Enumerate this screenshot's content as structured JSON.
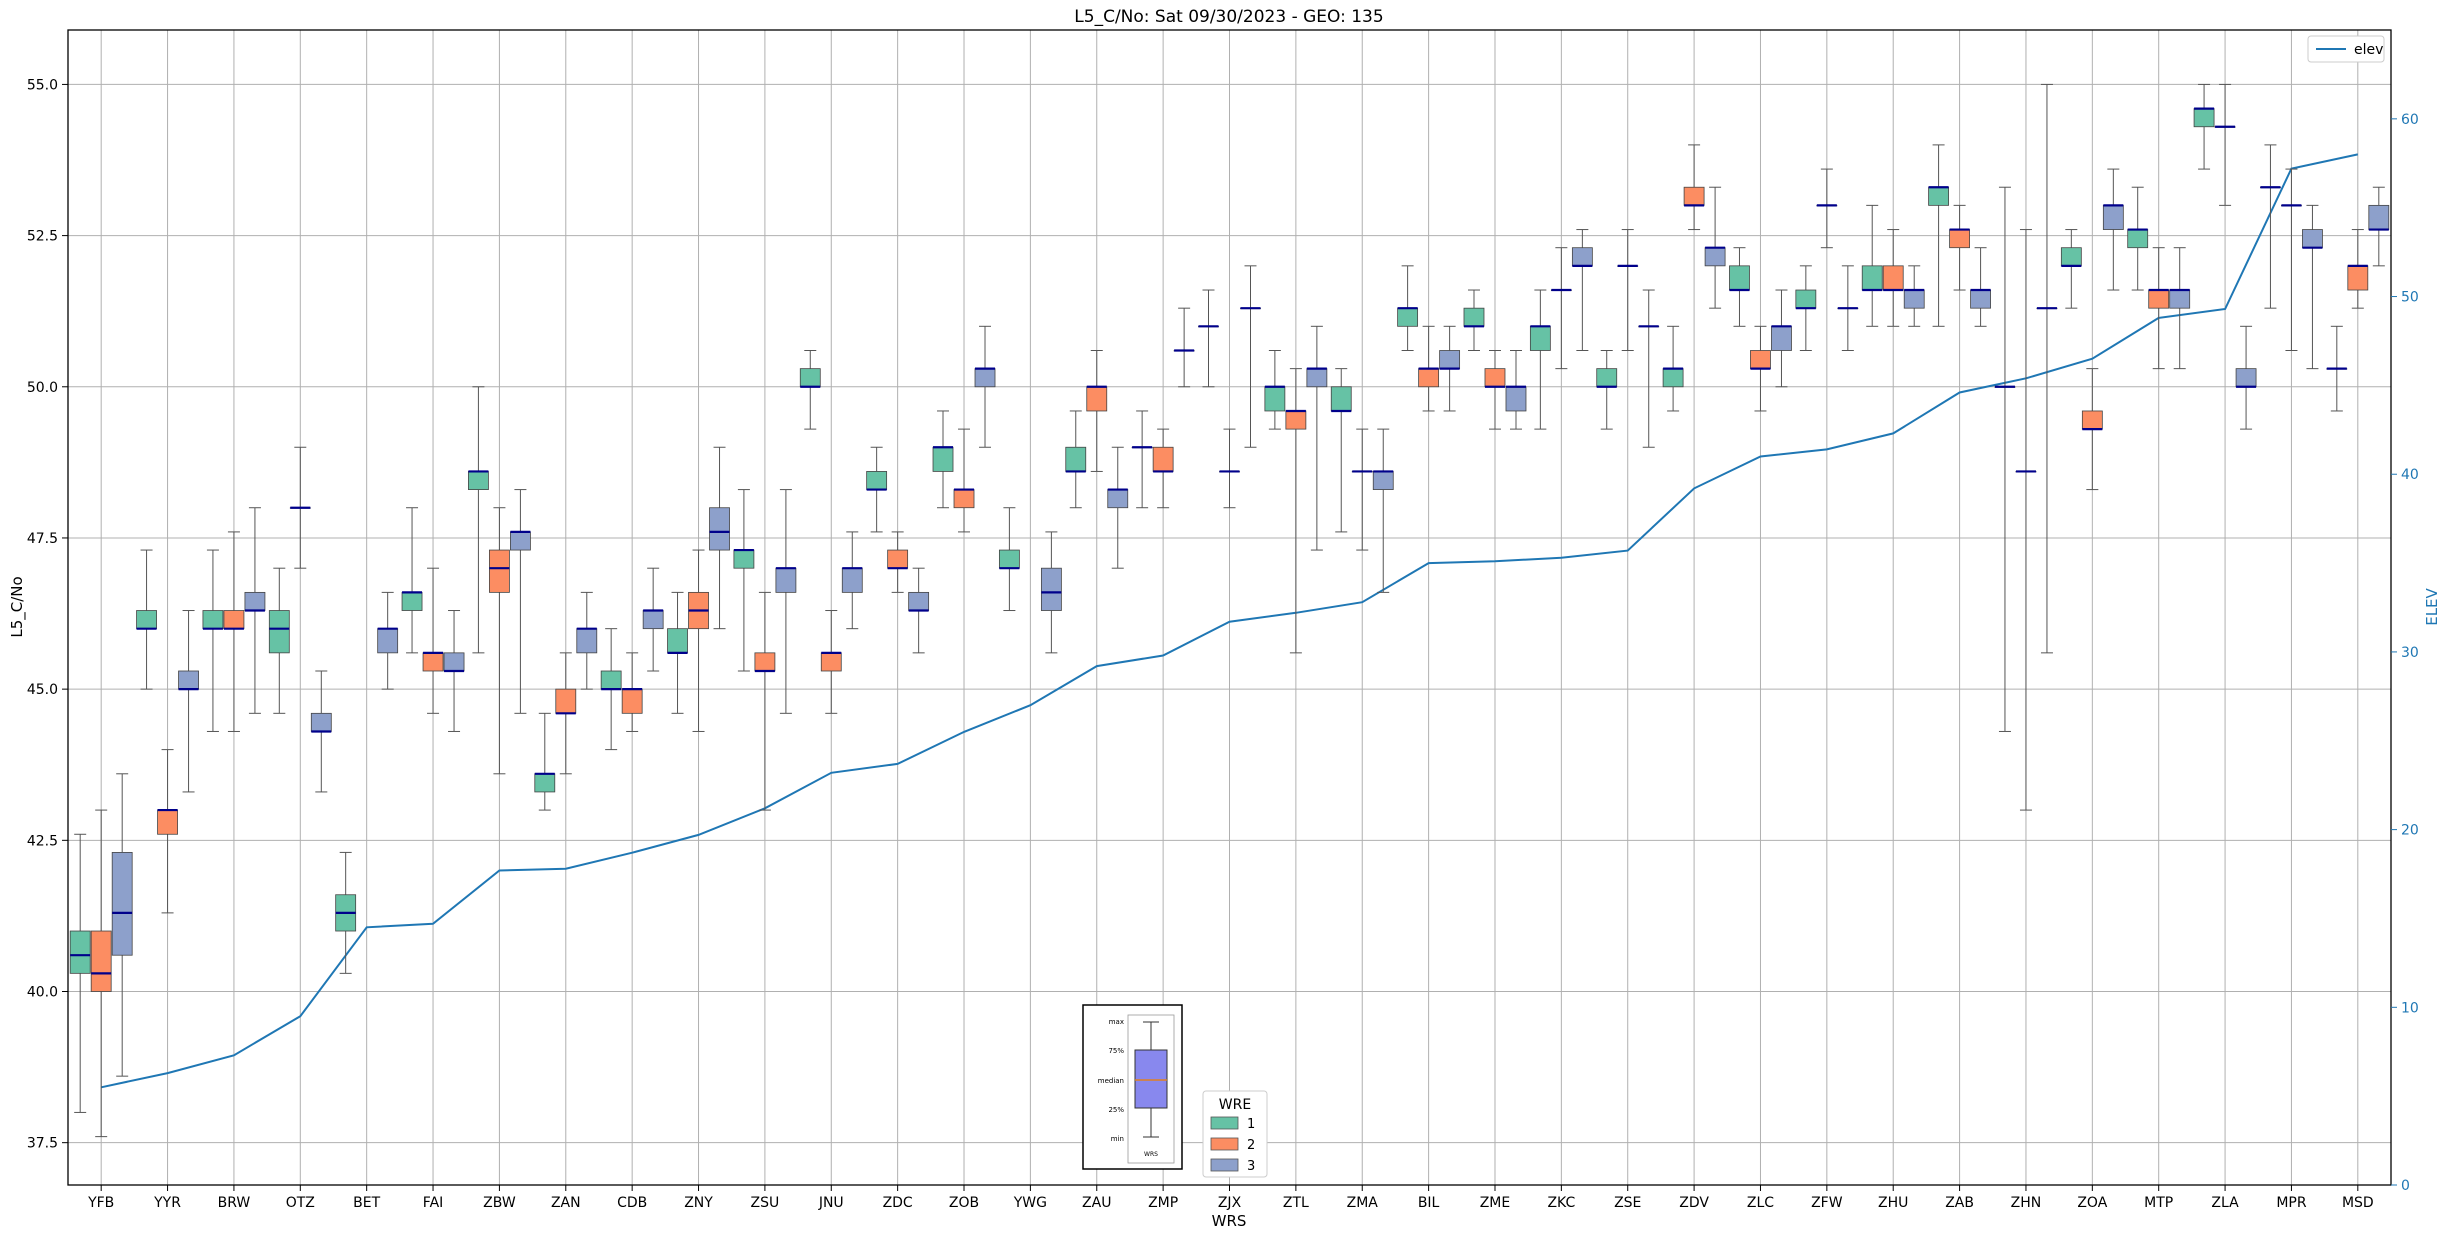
{
  "chart_data": {
    "type": "box",
    "title": "L5_C/No: Sat 09/30/2023 - GEO: 135",
    "xlabel": "WRS",
    "ylabel": "L5_C/No",
    "y2label": "ELEV",
    "ylim": [
      36.8,
      55.9
    ],
    "y2lim": [
      0,
      65
    ],
    "yticks": [
      "37.5",
      "40.0",
      "42.5",
      "45.0",
      "47.5",
      "50.0",
      "52.5",
      "55.0"
    ],
    "y2ticks": [
      "0",
      "10",
      "20",
      "30",
      "40",
      "50",
      "60"
    ],
    "grid": true,
    "categories": [
      "YFB",
      "YYR",
      "BRW",
      "OTZ",
      "BET",
      "FAI",
      "ZBW",
      "ZAN",
      "CDB",
      "ZNY",
      "ZSU",
      "JNU",
      "ZDC",
      "ZOB",
      "YWG",
      "ZAU",
      "ZMP",
      "ZJX",
      "ZTL",
      "ZMA",
      "BIL",
      "ZME",
      "ZKC",
      "ZSE",
      "ZDV",
      "ZLC",
      "ZFW",
      "ZHU",
      "ZAB",
      "ZHN",
      "ZOA",
      "MTP",
      "ZLA",
      "MPR",
      "MSD"
    ],
    "wre_colors": {
      "1": "#66c2a5",
      "2": "#fc8d62",
      "3": "#8da0cb"
    },
    "median_color": "#00008b",
    "elev_color": "#1f77b4",
    "legend_elev": {
      "label": "elev",
      "position": "top-right"
    },
    "legend_wre": {
      "title": "WRE",
      "entries": [
        "1",
        "2",
        "3"
      ],
      "position": "bottom-center"
    },
    "explainer": {
      "labels": [
        "max",
        "75%",
        "median",
        "25%",
        "min"
      ],
      "xlabel": "WRS",
      "box_color": "#8888ee",
      "median_color": "#e08020"
    },
    "elev": [
      5.5,
      6.3,
      7.3,
      9.5,
      14.5,
      14.7,
      17.7,
      17.8,
      18.7,
      19.7,
      21.2,
      23.2,
      23.7,
      25.5,
      27.0,
      29.2,
      29.8,
      31.7,
      32.2,
      32.8,
      35.0,
      35.1,
      35.3,
      35.7,
      39.2,
      41.0,
      41.4,
      42.3,
      44.6,
      45.4,
      46.5,
      48.8,
      49.3,
      57.2,
      58.0
    ],
    "boxes": [
      {
        "station": "YFB",
        "wre": 1,
        "min": 38.0,
        "q1": 40.3,
        "median": 40.6,
        "q3": 41.0,
        "max": 42.6
      },
      {
        "station": "YFB",
        "wre": 2,
        "min": 37.6,
        "q1": 40.0,
        "median": 40.3,
        "q3": 41.0,
        "max": 43.0
      },
      {
        "station": "YFB",
        "wre": 3,
        "min": 38.6,
        "q1": 40.6,
        "median": 41.3,
        "q3": 42.3,
        "max": 43.6
      },
      {
        "station": "YYR",
        "wre": 1,
        "min": 45.0,
        "q1": 46.0,
        "median": 46.0,
        "q3": 46.3,
        "max": 47.3
      },
      {
        "station": "YYR",
        "wre": 2,
        "min": 41.3,
        "q1": 42.6,
        "median": 43.0,
        "q3": 43.0,
        "max": 44.0
      },
      {
        "station": "YYR",
        "wre": 3,
        "min": 43.3,
        "q1": 45.0,
        "median": 45.0,
        "q3": 45.3,
        "max": 46.3
      },
      {
        "station": "BRW",
        "wre": 1,
        "min": 44.3,
        "q1": 46.0,
        "median": 46.0,
        "q3": 46.3,
        "max": 47.3
      },
      {
        "station": "BRW",
        "wre": 2,
        "min": 44.3,
        "q1": 46.0,
        "median": 46.0,
        "q3": 46.3,
        "max": 47.6
      },
      {
        "station": "BRW",
        "wre": 3,
        "min": 44.6,
        "q1": 46.3,
        "median": 46.3,
        "q3": 46.6,
        "max": 48.0
      },
      {
        "station": "OTZ",
        "wre": 1,
        "min": 44.6,
        "q1": 45.6,
        "median": 46.0,
        "q3": 46.3,
        "max": 47.0
      },
      {
        "station": "OTZ",
        "wre": 2,
        "min": 47.0,
        "q1": 48.0,
        "median": 48.0,
        "q3": 48.0,
        "max": 49.0
      },
      {
        "station": "OTZ",
        "wre": 3,
        "min": 43.3,
        "q1": 44.3,
        "median": 44.3,
        "q3": 44.6,
        "max": 45.3
      },
      {
        "station": "BET",
        "wre": 1,
        "min": 40.3,
        "q1": 41.0,
        "median": 41.3,
        "q3": 41.6,
        "max": 42.3
      },
      {
        "station": "BET",
        "wre": 3,
        "min": 45.0,
        "q1": 45.6,
        "median": 46.0,
        "q3": 46.0,
        "max": 46.6
      },
      {
        "station": "FAI",
        "wre": 1,
        "min": 45.6,
        "q1": 46.3,
        "median": 46.6,
        "q3": 46.6,
        "max": 48.0
      },
      {
        "station": "FAI",
        "wre": 2,
        "min": 44.6,
        "q1": 45.3,
        "median": 45.6,
        "q3": 45.6,
        "max": 47.0
      },
      {
        "station": "FAI",
        "wre": 3,
        "min": 44.3,
        "q1": 45.3,
        "median": 45.3,
        "q3": 45.6,
        "max": 46.3
      },
      {
        "station": "ZBW",
        "wre": 1,
        "min": 45.6,
        "q1": 48.3,
        "median": 48.6,
        "q3": 48.6,
        "max": 50.0
      },
      {
        "station": "ZBW",
        "wre": 2,
        "min": 43.6,
        "q1": 46.6,
        "median": 47.0,
        "q3": 47.3,
        "max": 48.0
      },
      {
        "station": "ZBW",
        "wre": 3,
        "min": 44.6,
        "q1": 47.3,
        "median": 47.6,
        "q3": 47.6,
        "max": 48.3
      },
      {
        "station": "ZAN",
        "wre": 1,
        "min": 43.0,
        "q1": 43.3,
        "median": 43.6,
        "q3": 43.6,
        "max": 44.6
      },
      {
        "station": "ZAN",
        "wre": 2,
        "min": 43.6,
        "q1": 44.6,
        "median": 44.6,
        "q3": 45.0,
        "max": 45.6
      },
      {
        "station": "ZAN",
        "wre": 3,
        "min": 45.0,
        "q1": 45.6,
        "median": 46.0,
        "q3": 46.0,
        "max": 46.6
      },
      {
        "station": "CDB",
        "wre": 1,
        "min": 44.0,
        "q1": 45.0,
        "median": 45.0,
        "q3": 45.3,
        "max": 46.0
      },
      {
        "station": "CDB",
        "wre": 2,
        "min": 44.3,
        "q1": 44.6,
        "median": 45.0,
        "q3": 45.0,
        "max": 45.6
      },
      {
        "station": "CDB",
        "wre": 3,
        "min": 45.3,
        "q1": 46.0,
        "median": 46.3,
        "q3": 46.3,
        "max": 47.0
      },
      {
        "station": "ZNY",
        "wre": 1,
        "min": 44.6,
        "q1": 45.6,
        "median": 45.6,
        "q3": 46.0,
        "max": 46.6
      },
      {
        "station": "ZNY",
        "wre": 2,
        "min": 44.3,
        "q1": 46.0,
        "median": 46.3,
        "q3": 46.6,
        "max": 47.3
      },
      {
        "station": "ZNY",
        "wre": 3,
        "min": 46.0,
        "q1": 47.3,
        "median": 47.6,
        "q3": 48.0,
        "max": 49.0
      },
      {
        "station": "ZSU",
        "wre": 1,
        "min": 45.3,
        "q1": 47.0,
        "median": 47.3,
        "q3": 47.3,
        "max": 48.3
      },
      {
        "station": "ZSU",
        "wre": 2,
        "min": 43.0,
        "q1": 45.3,
        "median": 45.3,
        "q3": 45.6,
        "max": 46.6
      },
      {
        "station": "ZSU",
        "wre": 3,
        "min": 44.6,
        "q1": 46.6,
        "median": 47.0,
        "q3": 47.0,
        "max": 48.3
      },
      {
        "station": "JNU",
        "wre": 1,
        "min": 49.3,
        "q1": 50.0,
        "median": 50.0,
        "q3": 50.3,
        "max": 50.6
      },
      {
        "station": "JNU",
        "wre": 2,
        "min": 44.6,
        "q1": 45.3,
        "median": 45.6,
        "q3": 45.6,
        "max": 46.3
      },
      {
        "station": "JNU",
        "wre": 3,
        "min": 46.0,
        "q1": 46.6,
        "median": 47.0,
        "q3": 47.0,
        "max": 47.6
      },
      {
        "station": "ZDC",
        "wre": 1,
        "min": 47.6,
        "q1": 48.3,
        "median": 48.3,
        "q3": 48.6,
        "max": 49.0
      },
      {
        "station": "ZDC",
        "wre": 2,
        "min": 46.6,
        "q1": 47.0,
        "median": 47.0,
        "q3": 47.3,
        "max": 47.6
      },
      {
        "station": "ZDC",
        "wre": 3,
        "min": 45.6,
        "q1": 46.3,
        "median": 46.3,
        "q3": 46.6,
        "max": 47.0
      },
      {
        "station": "ZOB",
        "wre": 1,
        "min": 48.0,
        "q1": 48.6,
        "median": 49.0,
        "q3": 49.0,
        "max": 49.6
      },
      {
        "station": "ZOB",
        "wre": 2,
        "min": 47.6,
        "q1": 48.0,
        "median": 48.3,
        "q3": 48.3,
        "max": 49.3
      },
      {
        "station": "ZOB",
        "wre": 3,
        "min": 49.0,
        "q1": 50.0,
        "median": 50.3,
        "q3": 50.3,
        "max": 51.0
      },
      {
        "station": "YWG",
        "wre": 1,
        "min": 46.3,
        "q1": 47.0,
        "median": 47.0,
        "q3": 47.3,
        "max": 48.0
      },
      {
        "station": "YWG",
        "wre": 3,
        "min": 45.6,
        "q1": 46.3,
        "median": 46.6,
        "q3": 47.0,
        "max": 47.6
      },
      {
        "station": "ZAU",
        "wre": 1,
        "min": 48.0,
        "q1": 48.6,
        "median": 48.6,
        "q3": 49.0,
        "max": 49.6
      },
      {
        "station": "ZAU",
        "wre": 2,
        "min": 48.6,
        "q1": 49.6,
        "median": 50.0,
        "q3": 50.0,
        "max": 50.6
      },
      {
        "station": "ZAU",
        "wre": 3,
        "min": 47.0,
        "q1": 48.0,
        "median": 48.3,
        "q3": 48.3,
        "max": 49.0
      },
      {
        "station": "ZMP",
        "wre": 1,
        "min": 48.0,
        "q1": 49.0,
        "median": 49.0,
        "q3": 49.0,
        "max": 49.6
      },
      {
        "station": "ZMP",
        "wre": 2,
        "min": 48.0,
        "q1": 48.6,
        "median": 48.6,
        "q3": 49.0,
        "max": 49.3
      },
      {
        "station": "ZMP",
        "wre": 3,
        "min": 50.0,
        "q1": 50.6,
        "median": 50.6,
        "q3": 50.6,
        "max": 51.3
      },
      {
        "station": "ZJX",
        "wre": 2,
        "min": 48.0,
        "q1": 48.6,
        "median": 48.6,
        "q3": 48.6,
        "max": 49.3
      },
      {
        "station": "ZJX",
        "wre": 3,
        "min": 49.0,
        "q1": 51.3,
        "median": 51.3,
        "q3": 51.3,
        "max": 52.0
      },
      {
        "station": "ZJX",
        "wre": 1,
        "min": 50.0,
        "q1": 51.0,
        "median": 51.0,
        "q3": 51.0,
        "max": 51.6
      },
      {
        "station": "ZTL",
        "wre": 1,
        "min": 49.3,
        "q1": 49.6,
        "median": 50.0,
        "q3": 50.0,
        "max": 50.6
      },
      {
        "station": "ZTL",
        "wre": 2,
        "min": 45.6,
        "q1": 49.3,
        "median": 49.6,
        "q3": 49.6,
        "max": 50.3
      },
      {
        "station": "ZTL",
        "wre": 3,
        "min": 47.3,
        "q1": 50.0,
        "median": 50.3,
        "q3": 50.3,
        "max": 51.0
      },
      {
        "station": "ZMA",
        "wre": 1,
        "min": 47.6,
        "q1": 49.6,
        "median": 49.6,
        "q3": 50.0,
        "max": 50.3
      },
      {
        "station": "ZMA",
        "wre": 2,
        "min": 47.3,
        "q1": 48.6,
        "median": 48.6,
        "q3": 48.6,
        "max": 49.3
      },
      {
        "station": "ZMA",
        "wre": 3,
        "min": 46.6,
        "q1": 48.3,
        "median": 48.6,
        "q3": 48.6,
        "max": 49.3
      },
      {
        "station": "BIL",
        "wre": 1,
        "min": 50.6,
        "q1": 51.0,
        "median": 51.3,
        "q3": 51.3,
        "max": 52.0
      },
      {
        "station": "BIL",
        "wre": 2,
        "min": 49.6,
        "q1": 50.0,
        "median": 50.3,
        "q3": 50.3,
        "max": 51.0
      },
      {
        "station": "BIL",
        "wre": 3,
        "min": 49.6,
        "q1": 50.3,
        "median": 50.3,
        "q3": 50.6,
        "max": 51.0
      },
      {
        "station": "ZME",
        "wre": 1,
        "min": 50.6,
        "q1": 51.0,
        "median": 51.0,
        "q3": 51.3,
        "max": 51.6
      },
      {
        "station": "ZME",
        "wre": 2,
        "min": 49.3,
        "q1": 50.0,
        "median": 50.0,
        "q3": 50.3,
        "max": 50.6
      },
      {
        "station": "ZME",
        "wre": 3,
        "min": 49.3,
        "q1": 49.6,
        "median": 50.0,
        "q3": 50.0,
        "max": 50.6
      },
      {
        "station": "ZKC",
        "wre": 1,
        "min": 49.3,
        "q1": 50.6,
        "median": 51.0,
        "q3": 51.0,
        "max": 51.6
      },
      {
        "station": "ZKC",
        "wre": 2,
        "min": 50.3,
        "q1": 51.6,
        "median": 51.6,
        "q3": 51.6,
        "max": 52.3
      },
      {
        "station": "ZKC",
        "wre": 3,
        "min": 50.6,
        "q1": 52.0,
        "median": 52.0,
        "q3": 52.3,
        "max": 52.6
      },
      {
        "station": "ZSE",
        "wre": 1,
        "min": 49.3,
        "q1": 50.0,
        "median": 50.0,
        "q3": 50.3,
        "max": 50.6
      },
      {
        "station": "ZSE",
        "wre": 2,
        "min": 50.6,
        "q1": 52.0,
        "median": 52.0,
        "q3": 52.0,
        "max": 52.6
      },
      {
        "station": "ZSE",
        "wre": 3,
        "min": 49.0,
        "q1": 51.0,
        "median": 51.0,
        "q3": 51.0,
        "max": 51.6
      },
      {
        "station": "ZDV",
        "wre": 1,
        "min": 49.6,
        "q1": 50.0,
        "median": 50.3,
        "q3": 50.3,
        "max": 51.0
      },
      {
        "station": "ZDV",
        "wre": 2,
        "min": 52.6,
        "q1": 53.0,
        "median": 53.0,
        "q3": 53.3,
        "max": 54.0
      },
      {
        "station": "ZDV",
        "wre": 3,
        "min": 51.3,
        "q1": 52.0,
        "median": 52.3,
        "q3": 52.3,
        "max": 53.3
      },
      {
        "station": "ZLC",
        "wre": 1,
        "min": 51.0,
        "q1": 51.6,
        "median": 51.6,
        "q3": 52.0,
        "max": 52.3
      },
      {
        "station": "ZLC",
        "wre": 2,
        "min": 49.6,
        "q1": 50.3,
        "median": 50.3,
        "q3": 50.6,
        "max": 51.0
      },
      {
        "station": "ZLC",
        "wre": 3,
        "min": 50.0,
        "q1": 50.6,
        "median": 51.0,
        "q3": 51.0,
        "max": 51.6
      },
      {
        "station": "ZFW",
        "wre": 1,
        "min": 50.6,
        "q1": 51.3,
        "median": 51.3,
        "q3": 51.6,
        "max": 52.0
      },
      {
        "station": "ZFW",
        "wre": 2,
        "min": 52.3,
        "q1": 53.0,
        "median": 53.0,
        "q3": 53.0,
        "max": 53.6
      },
      {
        "station": "ZFW",
        "wre": 3,
        "min": 50.6,
        "q1": 51.3,
        "median": 51.3,
        "q3": 51.3,
        "max": 52.0
      },
      {
        "station": "ZHU",
        "wre": 1,
        "min": 51.0,
        "q1": 51.6,
        "median": 51.6,
        "q3": 52.0,
        "max": 53.0
      },
      {
        "station": "ZHU",
        "wre": 2,
        "min": 51.0,
        "q1": 51.6,
        "median": 51.6,
        "q3": 52.0,
        "max": 52.6
      },
      {
        "station": "ZHU",
        "wre": 3,
        "min": 51.0,
        "q1": 51.3,
        "median": 51.6,
        "q3": 51.6,
        "max": 52.0
      },
      {
        "station": "ZAB",
        "wre": 1,
        "min": 51.0,
        "q1": 53.0,
        "median": 53.3,
        "q3": 53.3,
        "max": 54.0
      },
      {
        "station": "ZAB",
        "wre": 2,
        "min": 51.6,
        "q1": 52.3,
        "median": 52.6,
        "q3": 52.6,
        "max": 53.0
      },
      {
        "station": "ZAB",
        "wre": 3,
        "min": 51.0,
        "q1": 51.3,
        "median": 51.6,
        "q3": 51.6,
        "max": 52.3
      },
      {
        "station": "ZHN",
        "wre": 2,
        "min": 43.0,
        "q1": 48.6,
        "median": 48.6,
        "q3": 48.6,
        "max": 52.6
      },
      {
        "station": "ZHN",
        "wre": 3,
        "min": 45.6,
        "q1": 51.3,
        "median": 51.3,
        "q3": 51.3,
        "max": 55.0
      },
      {
        "station": "ZHN",
        "wre": 1,
        "min": 44.3,
        "q1": 50.0,
        "median": 50.0,
        "q3": 50.0,
        "max": 53.3
      },
      {
        "station": "ZOA",
        "wre": 1,
        "min": 51.3,
        "q1": 52.0,
        "median": 52.0,
        "q3": 52.3,
        "max": 52.6
      },
      {
        "station": "ZOA",
        "wre": 2,
        "min": 48.3,
        "q1": 49.3,
        "median": 49.3,
        "q3": 49.6,
        "max": 50.3
      },
      {
        "station": "ZOA",
        "wre": 3,
        "min": 51.6,
        "q1": 52.6,
        "median": 53.0,
        "q3": 53.0,
        "max": 53.6
      },
      {
        "station": "MTP",
        "wre": 1,
        "min": 51.6,
        "q1": 52.3,
        "median": 52.6,
        "q3": 52.6,
        "max": 53.3
      },
      {
        "station": "MTP",
        "wre": 2,
        "min": 50.3,
        "q1": 51.3,
        "median": 51.6,
        "q3": 51.6,
        "max": 52.3
      },
      {
        "station": "MTP",
        "wre": 3,
        "min": 50.3,
        "q1": 51.3,
        "median": 51.6,
        "q3": 51.6,
        "max": 52.3
      },
      {
        "station": "ZLA",
        "wre": 1,
        "min": 53.6,
        "q1": 54.3,
        "median": 54.6,
        "q3": 54.6,
        "max": 55.0
      },
      {
        "station": "ZLA",
        "wre": 2,
        "min": 53.0,
        "q1": 54.3,
        "median": 54.3,
        "q3": 54.3,
        "max": 55.0
      },
      {
        "station": "ZLA",
        "wre": 3,
        "min": 49.3,
        "q1": 50.0,
        "median": 50.0,
        "q3": 50.3,
        "max": 51.0
      },
      {
        "station": "MPR",
        "wre": 1,
        "min": 51.3,
        "q1": 53.3,
        "median": 53.3,
        "q3": 53.3,
        "max": 54.0
      },
      {
        "station": "MPR",
        "wre": 2,
        "min": 50.6,
        "q1": 53.0,
        "median": 53.0,
        "q3": 53.0,
        "max": 53.6
      },
      {
        "station": "MPR",
        "wre": 3,
        "min": 50.3,
        "q1": 52.3,
        "median": 52.3,
        "q3": 52.6,
        "max": 53.0
      },
      {
        "station": "MSD",
        "wre": 1,
        "min": 49.6,
        "q1": 50.3,
        "median": 50.3,
        "q3": 50.3,
        "max": 51.0
      },
      {
        "station": "MSD",
        "wre": 2,
        "min": 51.3,
        "q1": 51.6,
        "median": 52.0,
        "q3": 52.0,
        "max": 52.6
      },
      {
        "station": "MSD",
        "wre": 3,
        "min": 52.0,
        "q1": 52.6,
        "median": 52.6,
        "q3": 53.0,
        "max": 53.3
      }
    ]
  }
}
